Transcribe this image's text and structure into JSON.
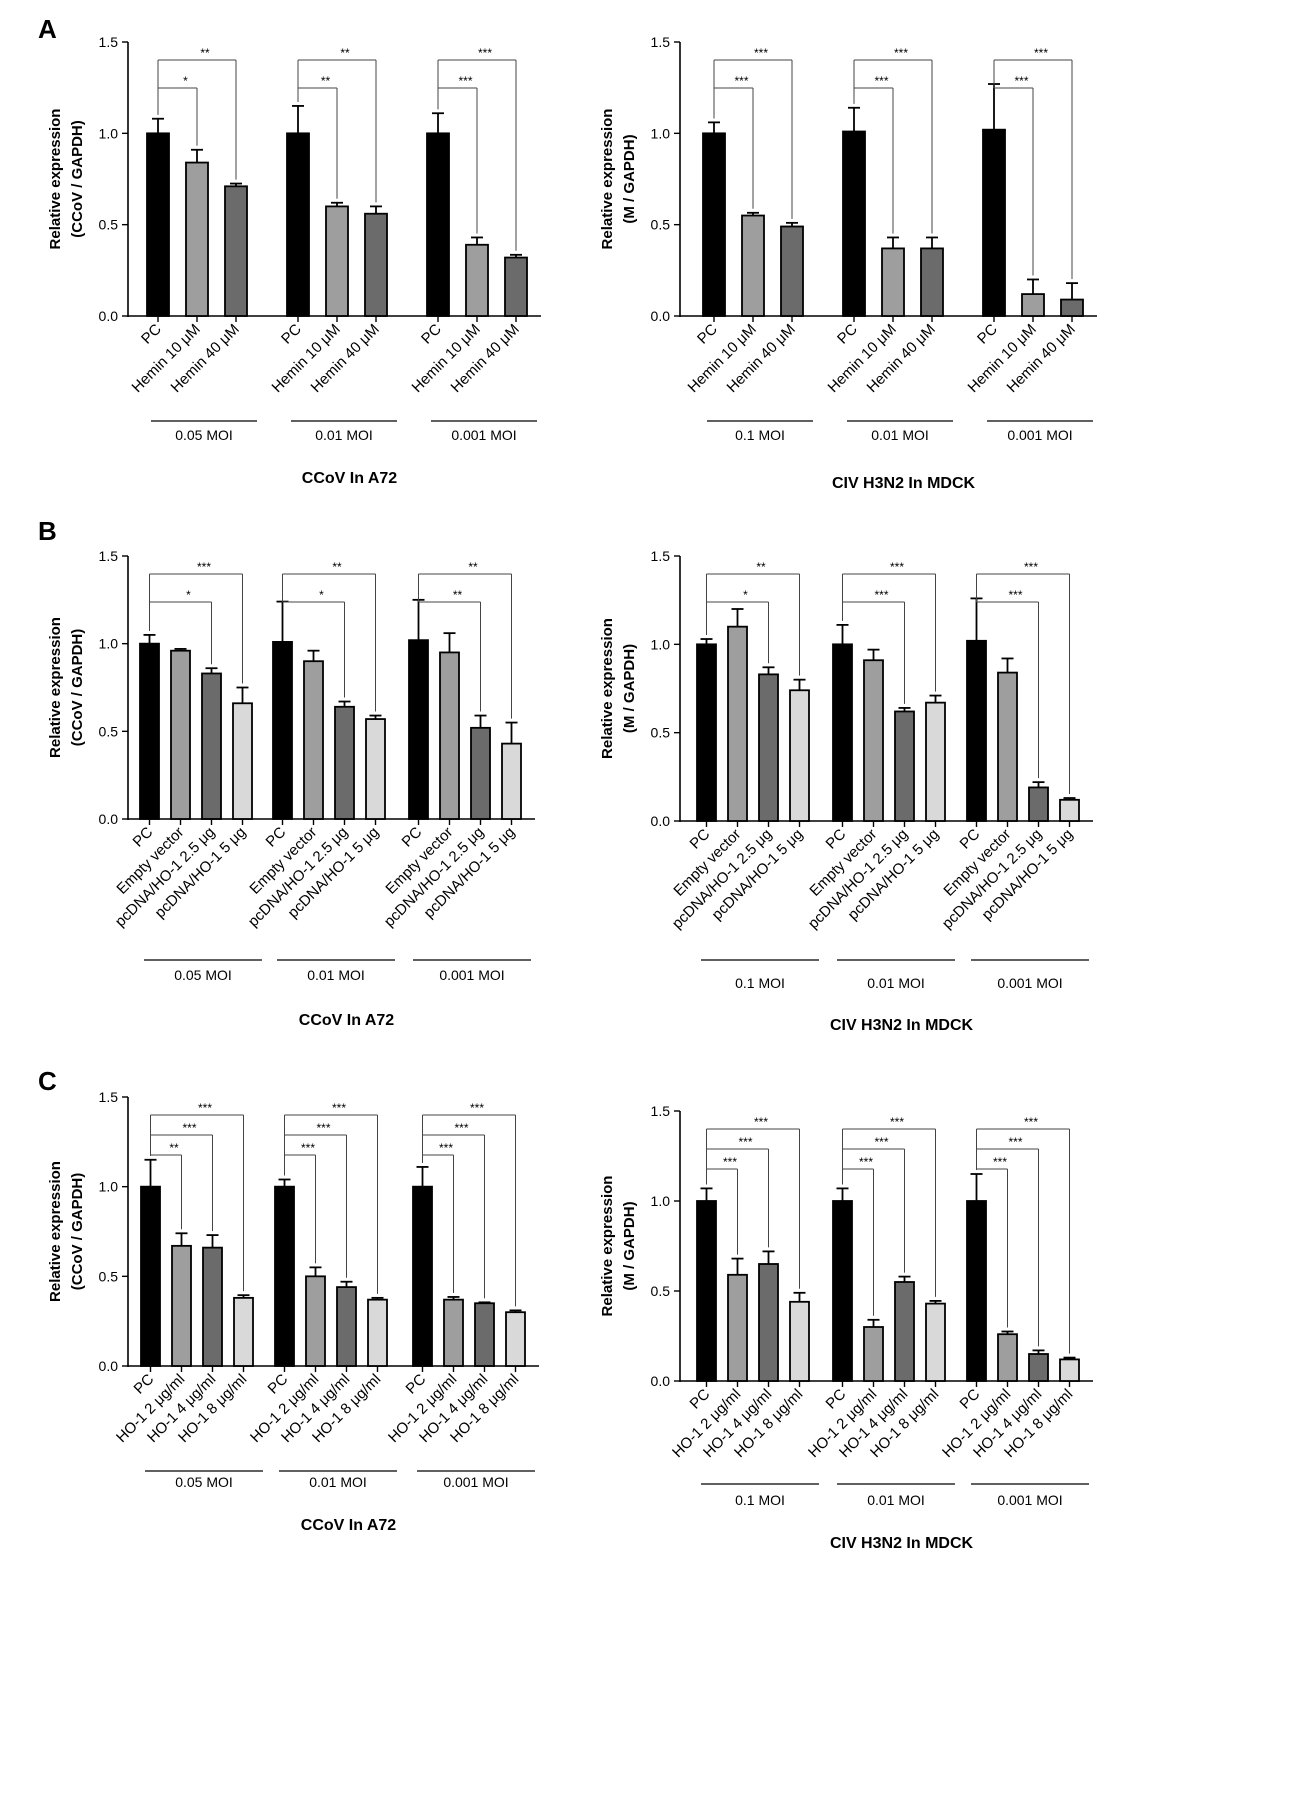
{
  "panel_letters": [
    "A",
    "B",
    "C"
  ],
  "colors": {
    "pc": "#000000",
    "dose1": "#9e9e9e",
    "dose2": "#6b6b6b",
    "dose3": "#d9d9d9",
    "axis": "#000000"
  },
  "chart_data": [
    {
      "type": "bar",
      "id": "A-left",
      "panel": "A",
      "title": "CCoV In A72",
      "ylabel_lines": [
        "Relative expression",
        "(CCoV / GAPDH)"
      ],
      "ylim": [
        0,
        1.5
      ],
      "yticks": [
        "0.0",
        "0.5",
        "1.0",
        "1.5"
      ],
      "categories": [
        "PC",
        "Hemin 10 μM",
        "Hemin 40 μM"
      ],
      "color_keys": [
        "pc",
        "dose1",
        "dose2"
      ],
      "groups": [
        {
          "label": "0.05 MOI",
          "values": [
            1.0,
            0.84,
            0.71
          ],
          "errors": [
            0.08,
            0.07,
            0.015
          ],
          "sig": [
            {
              "to": 1,
              "label": "*"
            },
            {
              "to": 2,
              "label": "**"
            }
          ]
        },
        {
          "label": "0.01 MOI",
          "values": [
            1.0,
            0.6,
            0.56
          ],
          "errors": [
            0.15,
            0.02,
            0.04
          ],
          "sig": [
            {
              "to": 1,
              "label": "**"
            },
            {
              "to": 2,
              "label": "**"
            }
          ]
        },
        {
          "label": "0.001 MOI",
          "values": [
            1.0,
            0.39,
            0.32
          ],
          "errors": [
            0.11,
            0.04,
            0.015
          ],
          "sig": [
            {
              "to": 1,
              "label": "***"
            },
            {
              "to": 2,
              "label": "***"
            }
          ]
        }
      ]
    },
    {
      "type": "bar",
      "id": "A-right",
      "panel": "A",
      "title": "CIV H3N2 In MDCK",
      "ylabel_lines": [
        "Relative expression",
        "(M / GAPDH)"
      ],
      "ylim": [
        0,
        1.5
      ],
      "yticks": [
        "0.0",
        "0.5",
        "1.0",
        "1.5"
      ],
      "categories": [
        "PC",
        "Hemin 10 μM",
        "Hemin 40 μM"
      ],
      "color_keys": [
        "pc",
        "dose1",
        "dose2"
      ],
      "groups": [
        {
          "label": "0.1 MOI",
          "values": [
            1.0,
            0.55,
            0.49
          ],
          "errors": [
            0.06,
            0.015,
            0.02
          ],
          "sig": [
            {
              "to": 1,
              "label": "***"
            },
            {
              "to": 2,
              "label": "***"
            }
          ]
        },
        {
          "label": "0.01 MOI",
          "values": [
            1.01,
            0.37,
            0.37
          ],
          "errors": [
            0.13,
            0.06,
            0.06
          ],
          "sig": [
            {
              "to": 1,
              "label": "***"
            },
            {
              "to": 2,
              "label": "***"
            }
          ]
        },
        {
          "label": "0.001 MOI",
          "values": [
            1.02,
            0.12,
            0.09
          ],
          "errors": [
            0.25,
            0.08,
            0.09
          ],
          "sig": [
            {
              "to": 1,
              "label": "***"
            },
            {
              "to": 2,
              "label": "***"
            }
          ]
        }
      ]
    },
    {
      "type": "bar",
      "id": "B-left",
      "panel": "B",
      "title": "CCoV In A72",
      "ylabel_lines": [
        "Relative expression",
        "(CCoV / GAPDH)"
      ],
      "ylim": [
        0,
        1.5
      ],
      "yticks": [
        "0.0",
        "0.5",
        "1.0",
        "1.5"
      ],
      "categories": [
        "PC",
        "Empty vector",
        "pcDNA/HO-1 2.5 μg",
        "pcDNA/HO-1 5 μg"
      ],
      "color_keys": [
        "pc",
        "dose1",
        "dose2",
        "dose3"
      ],
      "groups": [
        {
          "label": "0.05 MOI",
          "values": [
            1.0,
            0.96,
            0.83,
            0.66
          ],
          "errors": [
            0.05,
            0.01,
            0.03,
            0.09
          ],
          "sig": [
            {
              "to": 2,
              "label": "*"
            },
            {
              "to": 3,
              "label": "***"
            }
          ]
        },
        {
          "label": "0.01 MOI",
          "values": [
            1.01,
            0.9,
            0.64,
            0.57
          ],
          "errors": [
            0.23,
            0.06,
            0.03,
            0.02
          ],
          "sig": [
            {
              "to": 2,
              "label": "*"
            },
            {
              "to": 3,
              "label": "**"
            }
          ]
        },
        {
          "label": "0.001 MOI",
          "values": [
            1.02,
            0.95,
            0.52,
            0.43
          ],
          "errors": [
            0.23,
            0.11,
            0.07,
            0.12
          ],
          "sig": [
            {
              "to": 2,
              "label": "**"
            },
            {
              "to": 3,
              "label": "**"
            }
          ]
        }
      ]
    },
    {
      "type": "bar",
      "id": "B-right",
      "panel": "B",
      "title": "CIV H3N2 In MDCK",
      "ylabel_lines": [
        "Relative expression",
        "(M / GAPDH)"
      ],
      "ylim": [
        0,
        1.5
      ],
      "yticks": [
        "0.0",
        "0.5",
        "1.0",
        "1.5"
      ],
      "categories": [
        "PC",
        "Empty vector",
        "pcDNA/HO-1 2.5 μg",
        "pcDNA/HO-1 5 μg"
      ],
      "color_keys": [
        "pc",
        "dose1",
        "dose2",
        "dose3"
      ],
      "groups": [
        {
          "label": "0.1 MOI",
          "values": [
            1.0,
            1.1,
            0.83,
            0.74
          ],
          "errors": [
            0.03,
            0.1,
            0.04,
            0.06
          ],
          "sig": [
            {
              "to": 2,
              "label": "*"
            },
            {
              "to": 3,
              "label": "**"
            }
          ]
        },
        {
          "label": "0.01 MOI",
          "values": [
            1.0,
            0.91,
            0.62,
            0.67
          ],
          "errors": [
            0.11,
            0.06,
            0.02,
            0.04
          ],
          "sig": [
            {
              "to": 2,
              "label": "***"
            },
            {
              "to": 3,
              "label": "***"
            }
          ]
        },
        {
          "label": "0.001 MOI",
          "values": [
            1.02,
            0.84,
            0.19,
            0.12
          ],
          "errors": [
            0.24,
            0.08,
            0.03,
            0.01
          ],
          "sig": [
            {
              "to": 2,
              "label": "***"
            },
            {
              "to": 3,
              "label": "***"
            }
          ]
        }
      ]
    },
    {
      "type": "bar",
      "id": "C-left",
      "panel": "C",
      "title": "CCoV In A72",
      "ylabel_lines": [
        "Relative expression",
        "(CCoV / GAPDH)"
      ],
      "ylim": [
        0,
        1.5
      ],
      "yticks": [
        "0.0",
        "0.5",
        "1.0",
        "1.5"
      ],
      "categories": [
        "PC",
        "HO-1 2 μg/ml",
        "HO-1 4 μg/ml",
        "HO-1 8 μg/ml"
      ],
      "color_keys": [
        "pc",
        "dose1",
        "dose2",
        "dose3"
      ],
      "groups": [
        {
          "label": "0.05 MOI",
          "values": [
            1.0,
            0.67,
            0.66,
            0.38
          ],
          "errors": [
            0.15,
            0.07,
            0.07,
            0.015
          ],
          "sig": [
            {
              "to": 1,
              "label": "**"
            },
            {
              "to": 2,
              "label": "***"
            },
            {
              "to": 3,
              "label": "***"
            }
          ]
        },
        {
          "label": "0.01 MOI",
          "values": [
            1.0,
            0.5,
            0.44,
            0.37
          ],
          "errors": [
            0.04,
            0.05,
            0.03,
            0.01
          ],
          "sig": [
            {
              "to": 1,
              "label": "***"
            },
            {
              "to": 2,
              "label": "***"
            },
            {
              "to": 3,
              "label": "***"
            }
          ]
        },
        {
          "label": "0.001 MOI",
          "values": [
            1.0,
            0.37,
            0.35,
            0.3
          ],
          "errors": [
            0.11,
            0.015,
            0.005,
            0.01
          ],
          "sig": [
            {
              "to": 1,
              "label": "***"
            },
            {
              "to": 2,
              "label": "***"
            },
            {
              "to": 3,
              "label": "***"
            }
          ]
        }
      ]
    },
    {
      "type": "bar",
      "id": "C-right",
      "panel": "C",
      "title": "CIV H3N2 In MDCK",
      "ylabel_lines": [
        "Relative expression",
        "(M / GAPDH)"
      ],
      "ylim": [
        0,
        1.5
      ],
      "yticks": [
        "0.0",
        "0.5",
        "1.0",
        "1.5"
      ],
      "categories": [
        "PC",
        "HO-1 2 μg/ml",
        "HO-1 4 μg/ml",
        "HO-1 8 μg/ml"
      ],
      "color_keys": [
        "pc",
        "dose1",
        "dose2",
        "dose3"
      ],
      "groups": [
        {
          "label": "0.1 MOI",
          "values": [
            1.0,
            0.59,
            0.65,
            0.44
          ],
          "errors": [
            0.07,
            0.09,
            0.07,
            0.05
          ],
          "sig": [
            {
              "to": 1,
              "label": "***"
            },
            {
              "to": 2,
              "label": "***"
            },
            {
              "to": 3,
              "label": "***"
            }
          ]
        },
        {
          "label": "0.01 MOI",
          "values": [
            1.0,
            0.3,
            0.55,
            0.43
          ],
          "errors": [
            0.07,
            0.04,
            0.03,
            0.015
          ],
          "sig": [
            {
              "to": 1,
              "label": "***"
            },
            {
              "to": 2,
              "label": "***"
            },
            {
              "to": 3,
              "label": "***"
            }
          ]
        },
        {
          "label": "0.001 MOI",
          "values": [
            1.0,
            0.26,
            0.15,
            0.12
          ],
          "errors": [
            0.15,
            0.015,
            0.02,
            0.01
          ],
          "sig": [
            {
              "to": 1,
              "label": "***"
            },
            {
              "to": 2,
              "label": "***"
            },
            {
              "to": 3,
              "label": "***"
            }
          ]
        }
      ]
    }
  ]
}
